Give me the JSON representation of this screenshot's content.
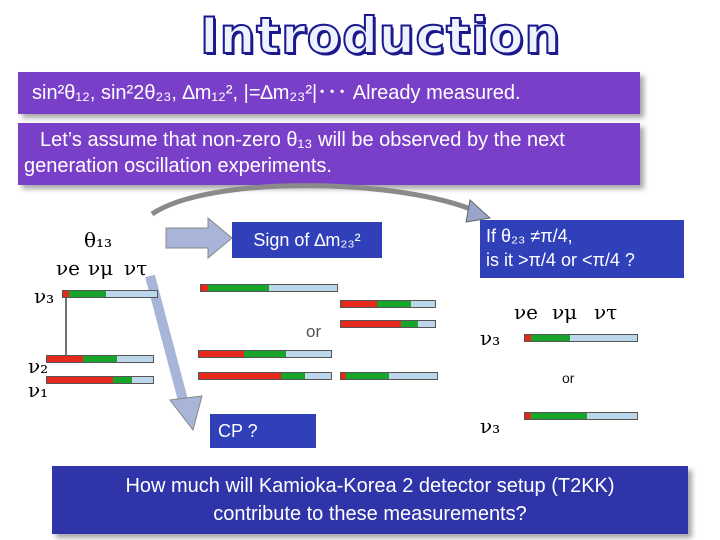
{
  "title": "Introduction",
  "measured_bar": {
    "text": "sin²θ₁₂, sin²2θ₂₃, ∆m₁₂², |=∆m₂₃²|･･･ Already measured."
  },
  "assume_bar": {
    "line1": "Let’s assume that non-zero θ₁₃ will be observed by the next",
    "line2": "generation oscillation experiments."
  },
  "theta13_label": "θ₁₃",
  "flavor_labels": {
    "e": "νe",
    "mu": "νμ",
    "tau": "ντ"
  },
  "nu3_label": "ν₃",
  "nu2_label": "ν₂",
  "nu1_label": "ν₁",
  "sign_box": "Sign of ∆m₂₃²",
  "or_label": "or",
  "cp_box": "CP ?",
  "octant_box": {
    "line1": "If θ₂₃ ≠π/4,",
    "line2": "is it >π/4 or <π/4 ?"
  },
  "question_bar": {
    "line1": "How much will Kamioka-Korea 2 detector setup (T2KK)",
    "line2": "contribute to these measurements?"
  },
  "colors": {
    "purple": "#7a3fc8",
    "navy": "#2f34a8",
    "red": "#e52a1d",
    "green": "#17a52a",
    "lightblue": "#bcd6ea"
  }
}
